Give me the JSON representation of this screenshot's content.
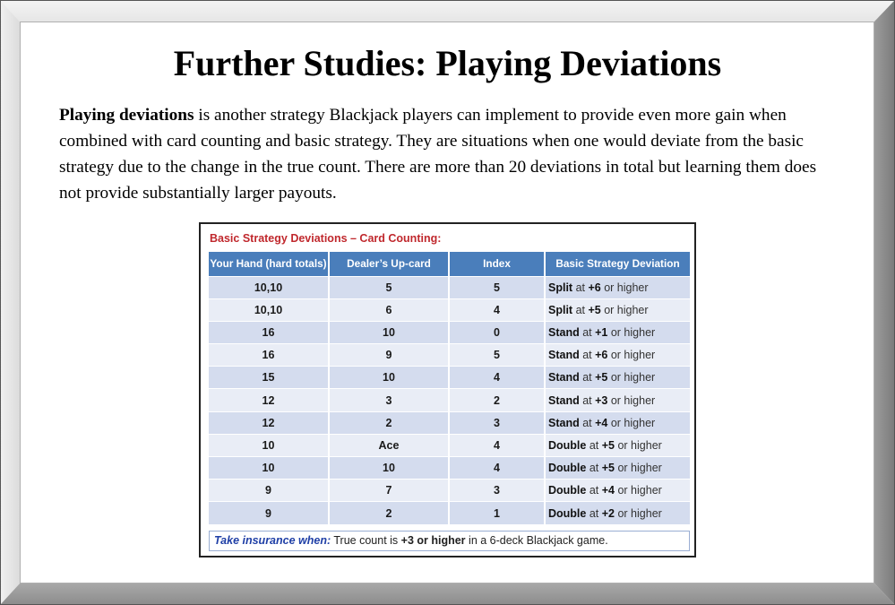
{
  "slide": {
    "title": "Further Studies: Playing Deviations",
    "paragraph_bold": "Playing deviations",
    "paragraph_rest": " is another strategy Blackjack players can implement to provide even more gain when combined with card counting and basic strategy. They are situations when one would deviate from the basic strategy due to the change in the true count. There are more than 20 deviations in total but learning them does not provide substantially larger payouts."
  },
  "table": {
    "caption": "Basic Strategy Deviations – Card Counting:",
    "headers": [
      "Your Hand (hard totals)",
      "Dealer’s Up-card",
      "Index",
      "Basic Strategy Deviation"
    ],
    "rows": [
      {
        "hand": "10,10",
        "dealer": "5",
        "index": "5",
        "action": "Split",
        "at": " at ",
        "count": "+6",
        "tail": " or higher"
      },
      {
        "hand": "10,10",
        "dealer": "6",
        "index": "4",
        "action": "Split",
        "at": " at ",
        "count": "+5",
        "tail": " or higher"
      },
      {
        "hand": "16",
        "dealer": "10",
        "index": "0",
        "action": "Stand",
        "at": " at ",
        "count": "+1",
        "tail": " or higher"
      },
      {
        "hand": "16",
        "dealer": "9",
        "index": "5",
        "action": "Stand",
        "at": " at ",
        "count": "+6",
        "tail": " or higher"
      },
      {
        "hand": "15",
        "dealer": "10",
        "index": "4",
        "action": "Stand",
        "at": " at ",
        "count": "+5",
        "tail": " or higher"
      },
      {
        "hand": "12",
        "dealer": "3",
        "index": "2",
        "action": "Stand",
        "at": " at ",
        "count": "+3",
        "tail": " or higher"
      },
      {
        "hand": "12",
        "dealer": "2",
        "index": "3",
        "action": "Stand",
        "at": " at ",
        "count": "+4",
        "tail": " or higher"
      },
      {
        "hand": "10",
        "dealer": "Ace",
        "index": "4",
        "action": "Double",
        "at": " at ",
        "count": "+5",
        "tail": " or higher"
      },
      {
        "hand": "10",
        "dealer": "10",
        "index": "4",
        "action": "Double",
        "at": " at ",
        "count": "+5",
        "tail": " or higher"
      },
      {
        "hand": "9",
        "dealer": "7",
        "index": "3",
        "action": "Double",
        "at": " at ",
        "count": "+4",
        "tail": " or higher"
      },
      {
        "hand": "9",
        "dealer": "2",
        "index": "1",
        "action": "Double",
        "at": " at ",
        "count": "+2",
        "tail": " or higher"
      }
    ],
    "note": {
      "lead": "Take insurance when:",
      "mid": " True count is ",
      "em": "+3 or higher",
      "tail": " in a 6-deck Blackjack game."
    }
  },
  "colors": {
    "header_bg": "#4a7ebb",
    "caption": "#c0282d",
    "row_odd": "#d4dcee",
    "row_even": "#e9edf6",
    "note_lead": "#1f3fa6"
  }
}
